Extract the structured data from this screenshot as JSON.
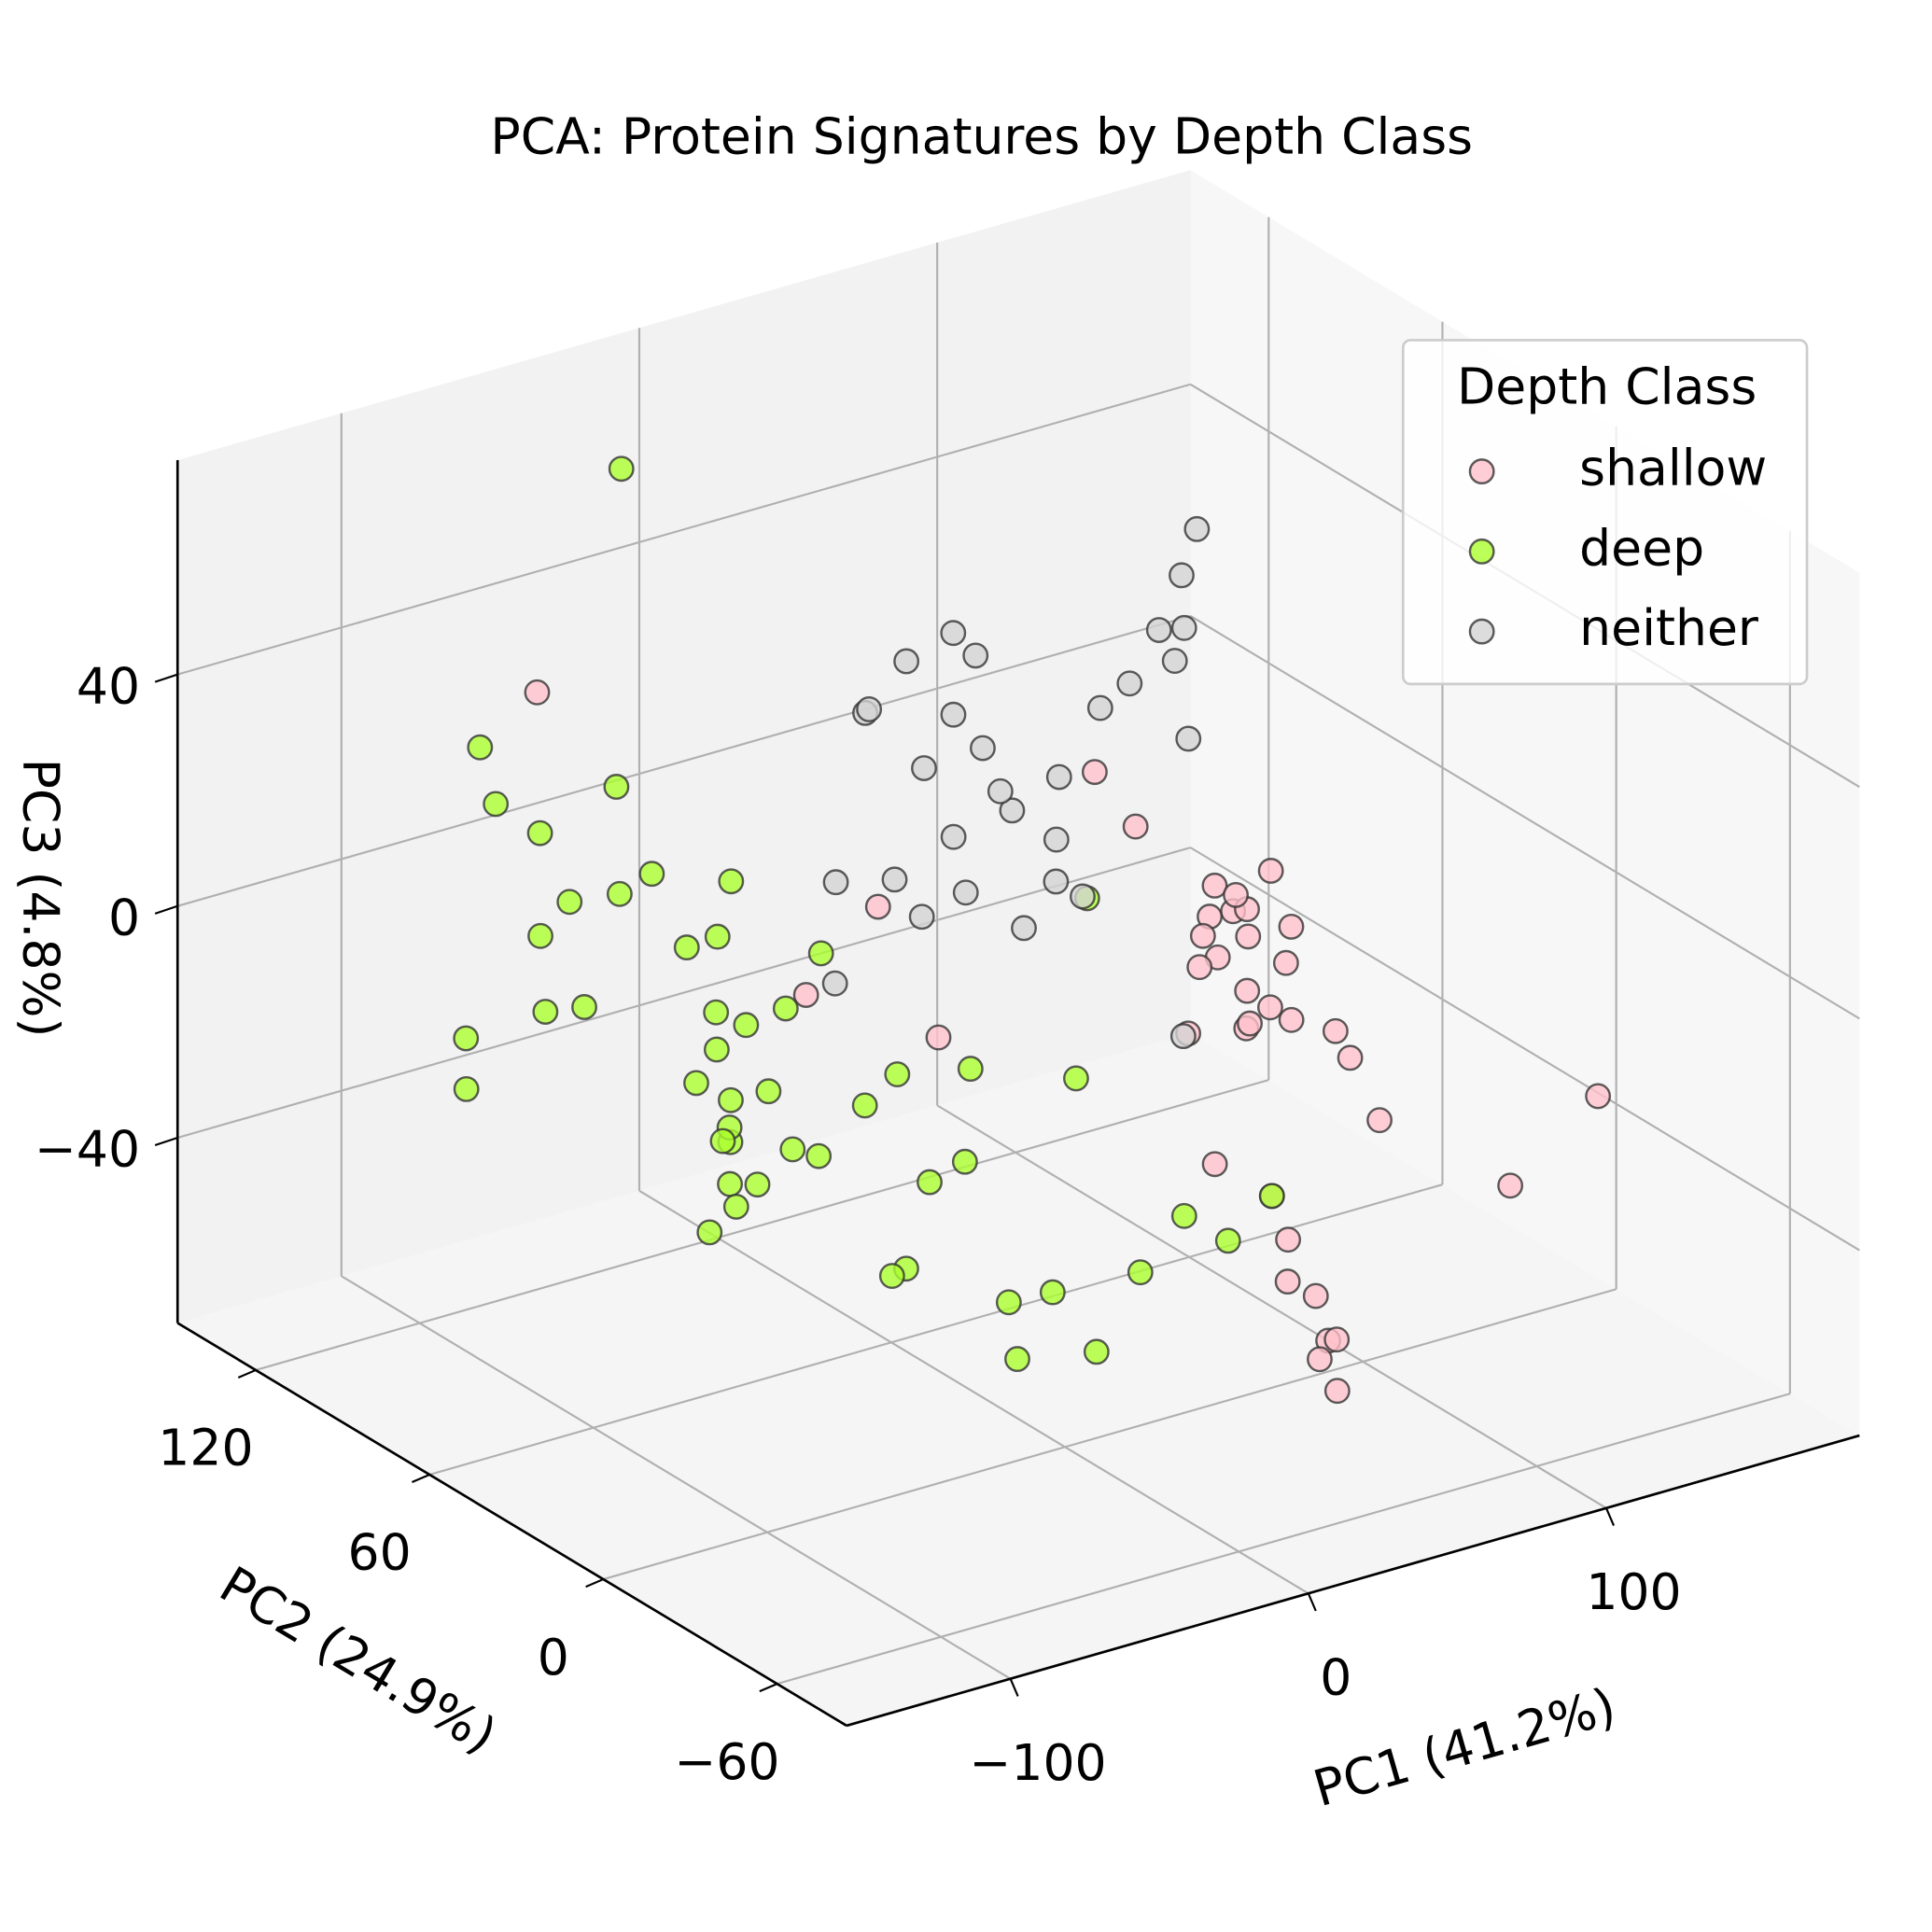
{
  "chart_data": {
    "type": "scatter3d",
    "title": "PCA: Protein Signatures by Depth Class",
    "xlabel": "PC1 (41.2%)",
    "ylabel": "PC2 (24.9%)",
    "zlabel": "PC3 (4.8%)",
    "xlim": [
      -155,
      185
    ],
    "ylim": [
      -84,
      147
    ],
    "zlim": [
      -72,
      77
    ],
    "xticks": [
      {
        "value": -100,
        "label": "−100"
      },
      0,
      100
    ],
    "yticks": [
      {
        "value": -60,
        "label": "−60"
      },
      0,
      60,
      120
    ],
    "zticks": [
      {
        "value": -40,
        "label": "−40"
      },
      0,
      40
    ],
    "grid": true,
    "legend_title": "Depth Class",
    "legend": "upper right",
    "series": [
      {
        "name": "shallow",
        "color": "#ffc0cb",
        "x": [
          100,
          95,
          110,
          105,
          90,
          115,
          98,
          102,
          88,
          120,
          108,
          93,
          112,
          97,
          85,
          118,
          103,
          99,
          107,
          91,
          30,
          32,
          28,
          35,
          60,
          70,
          140,
          82,
          78,
          125,
          50,
          45,
          65,
          15,
          20,
          55,
          -80,
          130
        ],
        "y": [
          40,
          45,
          35,
          50,
          30,
          42,
          38,
          55,
          48,
          25,
          33,
          44,
          52,
          36,
          41,
          28,
          47,
          31,
          39,
          46,
          -60,
          -55,
          -65,
          -58,
          10,
          -5,
          -40,
          60,
          70,
          20,
          -20,
          90,
          -10,
          80,
          110,
          -30,
          100,
          -20
        ],
        "z": [
          -20,
          -15,
          -25,
          -10,
          -22,
          -18,
          -5,
          -12,
          -28,
          -30,
          -8,
          -2,
          -16,
          -24,
          -14,
          -26,
          -6,
          -20,
          0,
          -11,
          -40,
          -45,
          -38,
          -50,
          -35,
          -45,
          -20,
          5,
          12,
          -40,
          -30,
          -35,
          -50,
          -5,
          -30,
          -45,
          40,
          -40
        ]
      },
      {
        "name": "deep",
        "color": "#adff2f",
        "x": [
          -15,
          -10,
          -20,
          -5,
          -25,
          0,
          -30,
          -12,
          -18,
          -8,
          5,
          -35,
          -22,
          -2,
          10,
          -40,
          -28,
          -14,
          -6,
          15,
          20,
          -45,
          -50,
          -60,
          25,
          30,
          -16,
          -24,
          -4,
          8,
          35,
          40,
          -55,
          -32,
          12,
          -26,
          -9,
          18,
          -38,
          2,
          -70,
          45,
          -11,
          -19,
          50,
          -42,
          22,
          -3,
          28,
          -65
        ],
        "y": [
          100,
          110,
          95,
          105,
          90,
          120,
          85,
          115,
          102,
          98,
          60,
          130,
          108,
          92,
          70,
          140,
          125,
          88,
          112,
          50,
          40,
          135,
          128,
          145,
          30,
          20,
          80,
          118,
          65,
          55,
          10,
          0,
          140,
          122,
          45,
          96,
          75,
          35,
          132,
          60,
          130,
          -10,
          104,
          94,
          -20,
          110,
          15,
          82,
          25,
          140
        ],
        "z": [
          -40,
          -35,
          -45,
          -30,
          -50,
          -20,
          -38,
          -42,
          -25,
          -55,
          -60,
          -30,
          -15,
          -48,
          -65,
          -20,
          -10,
          -35,
          -52,
          -40,
          -62,
          0,
          -28,
          -45,
          -58,
          -66,
          -18,
          -5,
          -32,
          -44,
          -50,
          -38,
          5,
          10,
          -22,
          -60,
          -8,
          -70,
          -12,
          -26,
          20,
          -40,
          -4,
          -56,
          -30,
          70,
          15,
          -46,
          -20,
          -34
        ]
      },
      {
        "name": "neither",
        "color": "#d3d3d3",
        "x": [
          60,
          55,
          70,
          50,
          65,
          45,
          75,
          40,
          80,
          58,
          62,
          48,
          68,
          52,
          35,
          85,
          72,
          42,
          30,
          90,
          25,
          78,
          66,
          54,
          20,
          88,
          38,
          46,
          74,
          64
        ],
        "y": [
          80,
          85,
          75,
          90,
          70,
          95,
          65,
          100,
          60,
          82,
          78,
          88,
          72,
          92,
          105,
          55,
          68,
          98,
          110,
          50,
          60,
          40,
          30,
          105,
          100,
          45,
          70,
          115,
          35,
          25
        ],
        "z": [
          5,
          15,
          0,
          20,
          -5,
          10,
          25,
          -10,
          30,
          8,
          -15,
          35,
          12,
          -2,
          18,
          40,
          -8,
          28,
          -12,
          22,
          2,
          55,
          45,
          -20,
          -25,
          60,
          38,
          14,
          48,
          -18
        ]
      }
    ]
  }
}
